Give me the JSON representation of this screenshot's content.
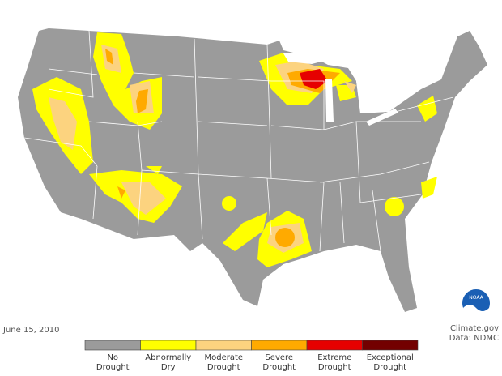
{
  "map": {
    "date": "June 15, 2010",
    "credit": "Climate.gov",
    "source": "Data: NDMC",
    "logo": "NOAA",
    "legend": [
      {
        "color": "#9b9b9b",
        "label": [
          "No",
          "Drought"
        ]
      },
      {
        "color": "#ffff00",
        "label": [
          "Abnormally",
          "Dry"
        ]
      },
      {
        "color": "#fcd37f",
        "label": [
          "Moderate",
          "Drought"
        ]
      },
      {
        "color": "#ffaa00",
        "label": [
          "Severe",
          "Drought"
        ]
      },
      {
        "color": "#e60000",
        "label": [
          "Extreme",
          "Drought"
        ]
      },
      {
        "color": "#730000",
        "label": [
          "Exceptional",
          "Drought"
        ]
      }
    ]
  }
}
